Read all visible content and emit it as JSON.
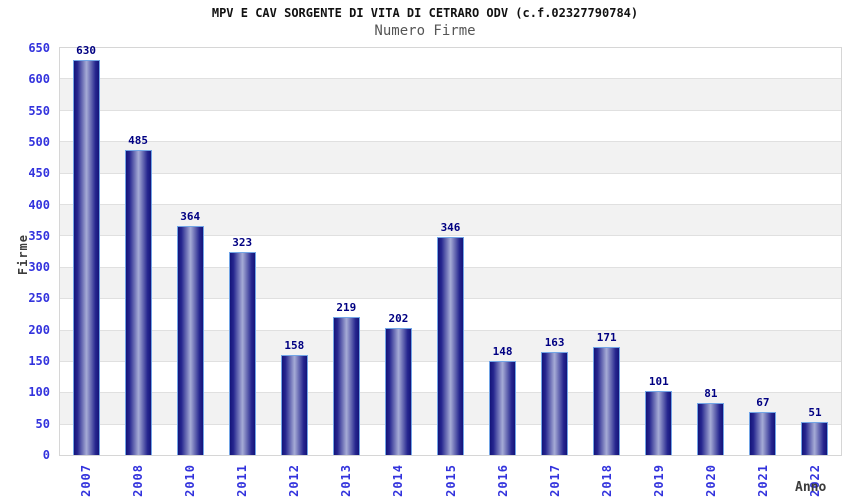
{
  "chart_data": {
    "type": "bar",
    "title": "MPV E CAV SORGENTE DI VITA DI CETRARO ODV (c.f.02327790784)",
    "subtitle": "Numero Firme",
    "xlabel": "Anno",
    "ylabel": "Firme",
    "categories": [
      "2007",
      "2008",
      "2010",
      "2011",
      "2012",
      "2013",
      "2014",
      "2015",
      "2016",
      "2017",
      "2018",
      "2019",
      "2020",
      "2021",
      "2022"
    ],
    "values": [
      630,
      485,
      364,
      323,
      158,
      219,
      202,
      346,
      148,
      163,
      171,
      101,
      81,
      67,
      51
    ],
    "ylim": [
      0,
      650
    ],
    "ytick_step": 50,
    "yticks": [
      0,
      50,
      100,
      150,
      200,
      250,
      300,
      350,
      400,
      450,
      500,
      550,
      600,
      650
    ],
    "grid": "horizontal-alternating-bands",
    "legend": "none",
    "colors": {
      "bar_edge": "#14147a",
      "bar_mid": "#26268f",
      "bar_center": "#a6acd6",
      "bar_border": "#72a5e6",
      "tick_label": "#3333dd",
      "value_label": "#000082",
      "band_alt": "#f2f2f2",
      "grid_line": "#e0e0e0",
      "plot_border": "#d6d6d6",
      "title_color": "#111111",
      "subtitle_color": "#555555",
      "axis_title_color": "#3c3c3c"
    }
  }
}
